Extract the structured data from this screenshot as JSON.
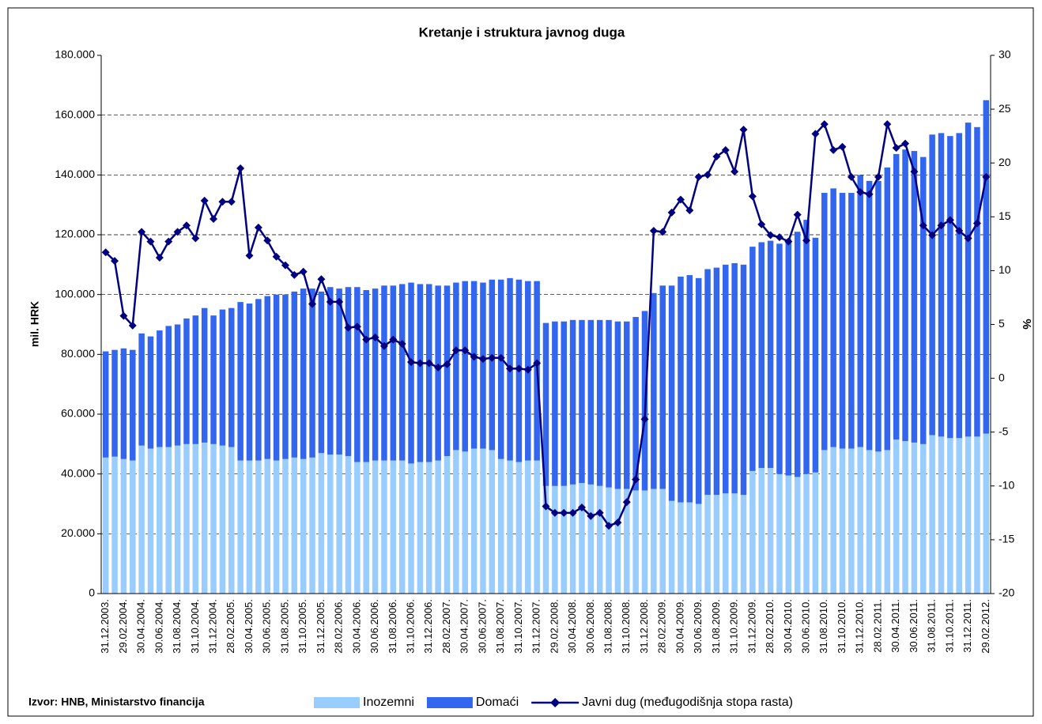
{
  "chart_data": {
    "type": "bar",
    "title": "Kretanje i struktura javnog duga",
    "ylabel": "mil. HRK",
    "y2label": "%",
    "source": "Izvor: HNB, Ministarstvo financija",
    "categories": [
      "31.12.2003.",
      null,
      "29.02.2004.",
      null,
      "30.04.2004.",
      null,
      "30.06.2004.",
      null,
      "31.08.2004.",
      null,
      "31.10.2004.",
      null,
      "31.12.2004.",
      null,
      "28.02.2005.",
      null,
      "30.04.2005.",
      null,
      "30.06.2005.",
      null,
      "31.08.2005.",
      null,
      "31.10.2005.",
      null,
      "31.12.2005.",
      null,
      "28.02.2006.",
      null,
      "30.04.2006.",
      null,
      "30.06.2006.",
      null,
      "31.08.2006.",
      null,
      "31.10.2006.",
      null,
      "31.12.2006.",
      null,
      "28.02.2007.",
      null,
      "30.04.2007.",
      null,
      "30.06.2007.",
      null,
      "31.08.2007.",
      null,
      "31.10.2007.",
      null,
      "31.12.2007.",
      null,
      "29.02.2008.",
      null,
      "30.04.2008.",
      null,
      "30.06.2008.",
      null,
      "31.08.2008.",
      null,
      "31.10.2008.",
      null,
      "31.12.2008.",
      null,
      "28.02.2009.",
      null,
      "30.04.2009.",
      null,
      "30.06.2009.",
      null,
      "31.08.2009.",
      null,
      "31.10.2009.",
      null,
      "31.12.2009.",
      null,
      "28.02.2010.",
      null,
      "30.04.2010.",
      null,
      "30.06.2010.",
      null,
      "31.08.2010.",
      null,
      "31.10.2010.",
      null,
      "31.12.2010.",
      null,
      "28.02.2011.",
      null,
      "30.04.2011.",
      null,
      "30.06.2011.",
      null,
      "31.08.2011.",
      null,
      "31.10.2011.",
      null,
      "31.12.2011.",
      null,
      "29.02.2012."
    ],
    "series": [
      {
        "name": "Inozemni",
        "color": "#99ccff",
        "values": [
          45500,
          45800,
          45000,
          44500,
          49500,
          48500,
          49000,
          49000,
          49500,
          50000,
          50000,
          50500,
          50000,
          49500,
          49000,
          44500,
          44500,
          44500,
          45000,
          44500,
          45000,
          45500,
          45000,
          45500,
          47000,
          46500,
          46500,
          46000,
          44000,
          44000,
          44500,
          44500,
          44500,
          44500,
          43500,
          44000,
          44000,
          44500,
          46000,
          48000,
          47500,
          48500,
          48500,
          48000,
          45000,
          44500,
          44000,
          44500,
          44500,
          36000,
          36000,
          36000,
          36500,
          37000,
          36500,
          36000,
          35500,
          35000,
          35000,
          34500,
          34500,
          35000,
          35000,
          31000,
          30500,
          30500,
          30000,
          33000,
          33000,
          33500,
          33500,
          33000,
          41000,
          42000,
          42000,
          40000,
          39500,
          39000,
          40000,
          40500,
          48000,
          49000,
          48500,
          48500,
          49000,
          48000,
          47500,
          48000,
          51500,
          51000,
          50500,
          50000,
          53000,
          52500,
          52000,
          52000,
          52500,
          52500,
          53500
        ]
      },
      {
        "name": "Domaći",
        "color": "#3366ee",
        "values": [
          35500,
          35700,
          37000,
          37000,
          37500,
          37500,
          39000,
          40500,
          40500,
          42000,
          43000,
          45000,
          43000,
          45500,
          46500,
          53000,
          52500,
          54000,
          54500,
          55500,
          55000,
          55500,
          57000,
          56500,
          54000,
          56000,
          55500,
          56500,
          58500,
          57500,
          57500,
          58500,
          58500,
          59000,
          60500,
          59500,
          59500,
          58500,
          57000,
          56000,
          57000,
          56000,
          55500,
          57000,
          60000,
          61000,
          61000,
          60000,
          60000,
          54500,
          55000,
          55000,
          55000,
          54500,
          55000,
          55500,
          56000,
          56000,
          56000,
          58000,
          60000,
          65500,
          68000,
          72000,
          75500,
          76000,
          75500,
          75500,
          76000,
          76500,
          77000,
          77000,
          75000,
          75500,
          76000,
          77000,
          79000,
          82000,
          85000,
          78500,
          86000,
          86500,
          85500,
          85500,
          91000,
          90000,
          90500,
          94500,
          95500,
          97500,
          97500,
          96000,
          100500,
          101500,
          101000,
          102000,
          105000,
          103500,
          111500
        ]
      },
      {
        "name": "Javni dug (međugodišnja stopa rasta)",
        "color": "#000080",
        "type": "line",
        "axis": "y2",
        "values": [
          11.7,
          10.9,
          5.8,
          4.9,
          13.6,
          12.7,
          11.2,
          12.7,
          13.6,
          14.2,
          13.0,
          16.5,
          14.8,
          16.4,
          16.4,
          19.5,
          11.4,
          14.0,
          12.8,
          11.3,
          10.5,
          9.6,
          9.9,
          6.9,
          9.2,
          7.1,
          7.1,
          4.7,
          4.8,
          3.6,
          3.8,
          3.0,
          3.6,
          3.2,
          1.5,
          1.4,
          1.4,
          1.0,
          1.3,
          2.6,
          2.6,
          2.0,
          1.8,
          1.9,
          1.9,
          0.9,
          0.9,
          0.8,
          1.4,
          -11.9,
          -12.5,
          -12.5,
          -12.5,
          -12.0,
          -12.8,
          -12.5,
          -13.7,
          -13.4,
          -11.5,
          -9.4,
          -3.8,
          13.7,
          13.6,
          15.4,
          16.6,
          15.6,
          18.7,
          18.9,
          20.6,
          21.2,
          19.2,
          23.1,
          16.9,
          14.3,
          13.3,
          13.1,
          12.7,
          15.2,
          12.8,
          22.7,
          23.6,
          21.2,
          21.5,
          18.7,
          17.3,
          17.1,
          18.7,
          23.6,
          21.4,
          21.8,
          19.2,
          14.2,
          13.3,
          14.2,
          14.7,
          13.7,
          13.0,
          14.4,
          18.7
        ]
      }
    ],
    "stacked": true,
    "grid": true,
    "ylim": [
      0,
      180000
    ],
    "yticks": [
      0,
      {
        "value": 20000,
        "label": "20.000"
      },
      {
        "value": 40000,
        "label": "40.000"
      },
      {
        "value": 60000,
        "label": "60.000"
      },
      {
        "value": 80000,
        "label": "80.000"
      },
      {
        "value": 100000,
        "label": "100.000"
      },
      {
        "value": 120000,
        "label": "120.000"
      },
      {
        "value": 140000,
        "label": "140.000"
      },
      {
        "value": 160000,
        "label": "160.000"
      },
      {
        "value": 180000,
        "label": "180.000"
      }
    ],
    "y2lim": [
      -20,
      30
    ],
    "y2ticks": [
      -20,
      -15,
      -10,
      -5,
      0,
      5,
      10,
      15,
      20,
      25,
      30
    ],
    "legend": "bottom"
  }
}
